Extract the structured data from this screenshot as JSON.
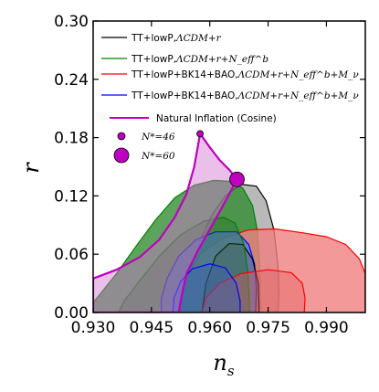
{
  "chart_data": {
    "type": "contour",
    "xlabel": "n",
    "xlabel_sub": "s",
    "ylabel": "r",
    "xlim": [
      0.93,
      1.0
    ],
    "ylim": [
      0.0,
      0.3
    ],
    "xticks": [
      "0.930",
      "0.945",
      "0.960",
      "0.975",
      "0.990"
    ],
    "xtick_values": [
      0.93,
      0.945,
      0.96,
      0.975,
      0.99
    ],
    "yticks": [
      "0.00",
      "0.06",
      "0.12",
      "0.18",
      "0.24",
      "0.30"
    ],
    "ytick_values": [
      0.0,
      0.06,
      0.12,
      0.18,
      0.24,
      0.3
    ],
    "legend_position": "top-right",
    "series": [
      {
        "label_plain": "TT+lowP,",
        "label_math": "ΛCDM+r",
        "color": "#000000",
        "fill_68": "none",
        "fill_95": "none",
        "contour_95": [
          [
            0.9525,
            0.0
          ],
          [
            0.953,
            0.013
          ],
          [
            0.9545,
            0.035
          ],
          [
            0.957,
            0.07
          ],
          [
            0.9605,
            0.1
          ],
          [
            0.964,
            0.12
          ],
          [
            0.968,
            0.132
          ],
          [
            0.972,
            0.13
          ],
          [
            0.9745,
            0.115
          ],
          [
            0.9765,
            0.085
          ],
          [
            0.9775,
            0.05
          ],
          [
            0.9778,
            0.02
          ],
          [
            0.9775,
            0.0
          ]
        ],
        "contour_68": [
          [
            0.958,
            0.0
          ],
          [
            0.959,
            0.03
          ],
          [
            0.9615,
            0.058
          ],
          [
            0.965,
            0.071
          ],
          [
            0.9685,
            0.07
          ],
          [
            0.971,
            0.055
          ],
          [
            0.9725,
            0.03
          ],
          [
            0.9727,
            0.0
          ]
        ]
      },
      {
        "label_plain": "TT+lowP,",
        "label_math": "ΛCDM+r+N_eff^b",
        "color": "#008000",
        "fill_68": "none",
        "fill_95": "none",
        "contour_95": [
          [
            0.93,
            0.01
          ],
          [
            0.932,
            0.02
          ],
          [
            0.936,
            0.04
          ],
          [
            0.941,
            0.068
          ],
          [
            0.946,
            0.095
          ],
          [
            0.951,
            0.118
          ],
          [
            0.956,
            0.131
          ],
          [
            0.961,
            0.136
          ],
          [
            0.965,
            0.135
          ],
          [
            0.9685,
            0.128
          ],
          [
            0.971,
            0.11
          ],
          [
            0.9722,
            0.085
          ],
          [
            0.9728,
            0.05
          ],
          [
            0.973,
            0.01
          ],
          [
            0.9728,
            0.0
          ],
          [
            0.93,
            0.0
          ]
        ],
        "contour_68": [
          [
            0.9365,
            0.0
          ],
          [
            0.938,
            0.012
          ],
          [
            0.942,
            0.033
          ],
          [
            0.947,
            0.058
          ],
          [
            0.9525,
            0.08
          ],
          [
            0.9585,
            0.094
          ],
          [
            0.9635,
            0.098
          ],
          [
            0.9665,
            0.092
          ],
          [
            0.9688,
            0.07
          ],
          [
            0.9698,
            0.04
          ],
          [
            0.9702,
            0.01
          ],
          [
            0.9702,
            0.0
          ]
        ]
      },
      {
        "label_plain": "TT+lowP+BK14+BAO,",
        "label_math": "ΛCDM+r+N_eff^b+M_ν",
        "color": "#ff0000",
        "fill_68": "none",
        "fill_95": "none",
        "contour_95": [
          [
            0.952,
            0.0
          ],
          [
            0.9522,
            0.012
          ],
          [
            0.954,
            0.035
          ],
          [
            0.9575,
            0.06
          ],
          [
            0.963,
            0.076
          ],
          [
            0.97,
            0.085
          ],
          [
            0.977,
            0.086
          ],
          [
            0.984,
            0.082
          ],
          [
            0.99,
            0.078
          ],
          [
            0.995,
            0.07
          ],
          [
            0.9985,
            0.055
          ],
          [
            1.0,
            0.04
          ],
          [
            1.0,
            0.0
          ]
        ],
        "contour_68": [
          [
            0.958,
            0.0
          ],
          [
            0.959,
            0.015
          ],
          [
            0.9625,
            0.03
          ],
          [
            0.968,
            0.04
          ],
          [
            0.975,
            0.044
          ],
          [
            0.981,
            0.041
          ],
          [
            0.9838,
            0.03
          ],
          [
            0.9845,
            0.015
          ],
          [
            0.9843,
            0.0
          ]
        ]
      },
      {
        "label_plain": "TT+lowP+BK14+BAO,",
        "label_math": "ΛCDM+r+N_eff^b+M_ν",
        "color": "#0000ff",
        "fill_68": "none",
        "fill_95": "none",
        "contour_95": [
          [
            0.9475,
            0.0
          ],
          [
            0.9476,
            0.015
          ],
          [
            0.949,
            0.035
          ],
          [
            0.952,
            0.058
          ],
          [
            0.9565,
            0.075
          ],
          [
            0.9615,
            0.083
          ],
          [
            0.967,
            0.083
          ],
          [
            0.97,
            0.07
          ],
          [
            0.9715,
            0.05
          ],
          [
            0.972,
            0.025
          ],
          [
            0.9718,
            0.0
          ]
        ],
        "contour_68": [
          [
            0.9505,
            0.0
          ],
          [
            0.9508,
            0.015
          ],
          [
            0.9525,
            0.032
          ],
          [
            0.9555,
            0.045
          ],
          [
            0.96,
            0.05
          ],
          [
            0.964,
            0.046
          ],
          [
            0.9668,
            0.03
          ],
          [
            0.9678,
            0.012
          ],
          [
            0.9678,
            0.0
          ]
        ]
      }
    ],
    "theory": {
      "label": "Natural Inflation (Cosine)",
      "color": "#c000c0",
      "region": [
        [
          0.93,
          0.035
        ],
        [
          0.936,
          0.044
        ],
        [
          0.942,
          0.057
        ],
        [
          0.947,
          0.075
        ],
        [
          0.951,
          0.098
        ],
        [
          0.954,
          0.122
        ],
        [
          0.956,
          0.15
        ],
        [
          0.9575,
          0.184
        ],
        [
          0.96,
          0.17
        ],
        [
          0.9625,
          0.157
        ],
        [
          0.965,
          0.147
        ],
        [
          0.967,
          0.137
        ],
        [
          0.963,
          0.107
        ],
        [
          0.957,
          0.064
        ],
        [
          0.954,
          0.04
        ],
        [
          0.9528,
          0.018
        ],
        [
          0.952,
          0.0
        ],
        [
          0.93,
          0.0
        ]
      ],
      "points": [
        {
          "label": "N*=46",
          "ns": 0.9575,
          "r": 0.184,
          "size": "small"
        },
        {
          "label": "N*=60",
          "ns": 0.967,
          "r": 0.137,
          "size": "large"
        }
      ]
    }
  }
}
